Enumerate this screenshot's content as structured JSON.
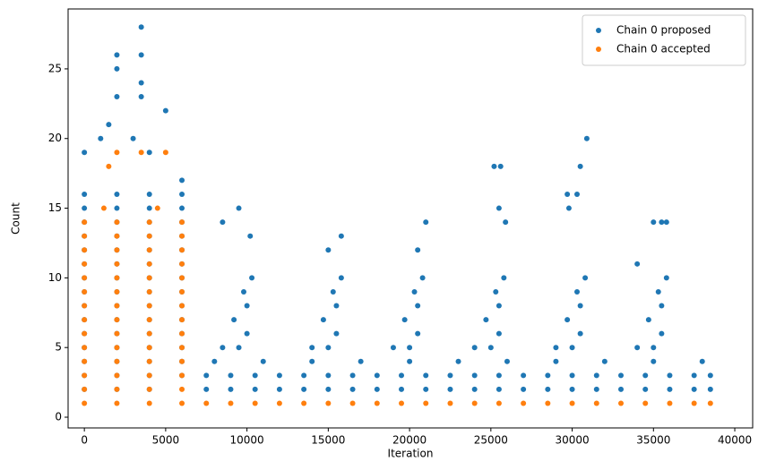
{
  "chart_data": {
    "type": "scatter",
    "xlabel": "Iteration",
    "ylabel": "Count",
    "xlim": [
      -1000,
      41100
    ],
    "ylim": [
      -0.77,
      29.3
    ],
    "xticks": [
      0,
      5000,
      10000,
      15000,
      20000,
      25000,
      30000,
      35000,
      40000
    ],
    "yticks": [
      0,
      5,
      10,
      15,
      20,
      25
    ],
    "legend": "upper right",
    "series": [
      {
        "name": "Chain 0 proposed",
        "color": "#1f77b4",
        "x": [
          0,
          0,
          0,
          0,
          0,
          0,
          0,
          0,
          0,
          0,
          0,
          0,
          0,
          0,
          0,
          2000,
          2000,
          2000,
          2000,
          2000,
          2000,
          2000,
          2000,
          2000,
          2000,
          2000,
          2000,
          2000,
          2000,
          2000,
          4000,
          4000,
          4000,
          4000,
          4000,
          4000,
          4000,
          4000,
          4000,
          4000,
          4000,
          4000,
          4000,
          4000,
          4000,
          6000,
          6000,
          6000,
          6000,
          6000,
          6000,
          6000,
          6000,
          6000,
          6000,
          6000,
          6000,
          6000,
          6000,
          6000,
          2000,
          2000,
          3500,
          3500,
          3500,
          3500,
          2000,
          5000,
          1500,
          1000,
          3000,
          0,
          4000,
          7500,
          9000,
          10500,
          12000,
          13500,
          15000,
          16500,
          18000,
          19500,
          21000,
          22500,
          24000,
          25500,
          27000,
          28500,
          30000,
          31500,
          33000,
          34500,
          36000,
          37500,
          38500,
          7500,
          9000,
          10500,
          12000,
          13500,
          15000,
          16500,
          18000,
          19500,
          21000,
          22500,
          24000,
          25500,
          27000,
          28500,
          30000,
          31500,
          33000,
          34500,
          36000,
          37500,
          38500,
          8000,
          11000,
          14000,
          17000,
          20000,
          23000,
          26000,
          29000,
          32000,
          35000,
          38000,
          8500,
          9500,
          10000,
          9200,
          10000,
          9800,
          10300,
          14000,
          15000,
          15500,
          14700,
          15500,
          15300,
          15800,
          19000,
          20000,
          20500,
          19700,
          20500,
          20300,
          20800,
          24000,
          25000,
          25500,
          24700,
          25500,
          25300,
          25800,
          29000,
          30000,
          30500,
          29700,
          30500,
          30300,
          30800,
          34000,
          35000,
          35500,
          34700,
          35500,
          35300,
          35800,
          9500,
          8500,
          10200,
          15800,
          15000,
          21000,
          20500,
          25200,
          25600,
          25500,
          25900,
          30500,
          30900,
          29700,
          30300,
          29800,
          35500,
          35800,
          35000,
          34000
        ],
        "values": [
          2,
          3,
          4,
          5,
          6,
          7,
          8,
          9,
          10,
          11,
          12,
          13,
          14,
          15,
          16,
          2,
          3,
          4,
          5,
          6,
          7,
          8,
          9,
          10,
          11,
          12,
          13,
          14,
          15,
          16,
          2,
          3,
          4,
          5,
          6,
          7,
          8,
          9,
          10,
          11,
          12,
          13,
          14,
          15,
          16,
          3,
          4,
          5,
          6,
          7,
          8,
          9,
          10,
          11,
          12,
          13,
          14,
          15,
          16,
          17,
          26,
          25,
          28,
          26,
          24,
          23,
          23,
          22,
          21,
          20,
          20,
          19,
          19,
          2,
          2,
          2,
          2,
          2,
          2,
          2,
          2,
          2,
          2,
          2,
          2,
          2,
          2,
          2,
          2,
          2,
          2,
          2,
          2,
          2,
          2,
          3,
          3,
          3,
          3,
          3,
          3,
          3,
          3,
          3,
          3,
          3,
          3,
          3,
          3,
          3,
          3,
          3,
          3,
          3,
          3,
          3,
          3,
          4,
          4,
          4,
          4,
          4,
          4,
          4,
          4,
          4,
          4,
          4,
          5,
          5,
          6,
          7,
          8,
          9,
          10,
          5,
          5,
          6,
          7,
          8,
          9,
          10,
          5,
          5,
          6,
          7,
          8,
          9,
          10,
          5,
          5,
          6,
          7,
          8,
          9,
          10,
          5,
          5,
          6,
          7,
          8,
          9,
          10,
          5,
          5,
          6,
          7,
          8,
          9,
          10,
          15,
          14,
          13,
          13,
          12,
          14,
          12,
          18,
          18,
          15,
          14,
          18,
          20,
          16,
          16,
          15,
          14,
          14,
          14,
          11
        ]
      },
      {
        "name": "Chain 0 accepted",
        "color": "#ff7f0e",
        "x": [
          0,
          0,
          0,
          0,
          0,
          0,
          0,
          0,
          0,
          0,
          0,
          0,
          0,
          0,
          2000,
          2000,
          2000,
          2000,
          2000,
          2000,
          2000,
          2000,
          2000,
          2000,
          2000,
          2000,
          2000,
          2000,
          4000,
          4000,
          4000,
          4000,
          4000,
          4000,
          4000,
          4000,
          4000,
          4000,
          4000,
          4000,
          4000,
          4000,
          6000,
          6000,
          6000,
          6000,
          6000,
          6000,
          6000,
          6000,
          6000,
          6000,
          6000,
          6000,
          6000,
          6000,
          2000,
          1500,
          3500,
          5000,
          1200,
          4500,
          7500,
          9000,
          10500,
          12000,
          13500,
          15000,
          16500,
          18000,
          19500,
          21000,
          22500,
          24000,
          25500,
          27000,
          28500,
          30000,
          31500,
          33000,
          34500,
          36000,
          37500,
          38500
        ],
        "values": [
          1,
          2,
          3,
          4,
          5,
          6,
          7,
          8,
          9,
          10,
          11,
          12,
          13,
          14,
          1,
          2,
          3,
          4,
          5,
          6,
          7,
          8,
          9,
          10,
          11,
          12,
          13,
          14,
          1,
          2,
          3,
          4,
          5,
          6,
          7,
          8,
          9,
          10,
          11,
          12,
          13,
          14,
          1,
          2,
          3,
          4,
          5,
          6,
          7,
          8,
          9,
          10,
          11,
          12,
          13,
          14,
          19,
          18,
          19,
          19,
          15,
          15,
          1,
          1,
          1,
          1,
          1,
          1,
          1,
          1,
          1,
          1,
          1,
          1,
          1,
          1,
          1,
          1,
          1,
          1,
          1,
          1,
          1,
          1
        ]
      }
    ]
  }
}
